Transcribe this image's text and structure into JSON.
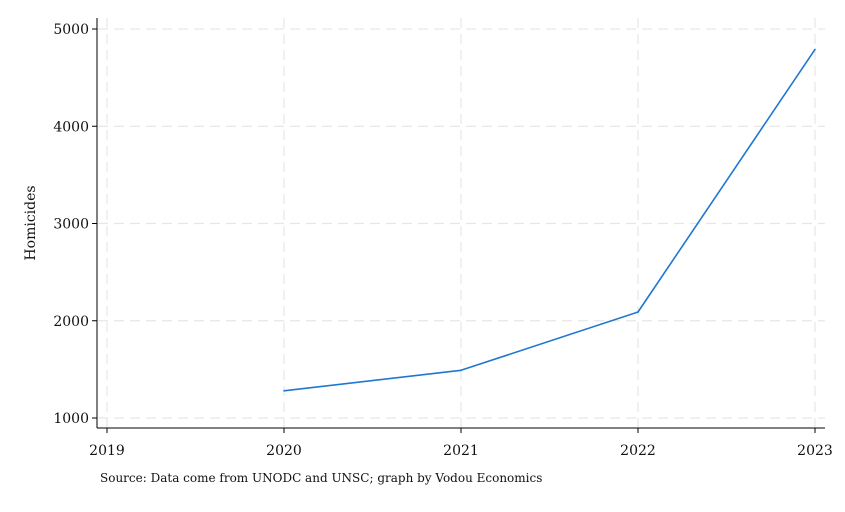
{
  "chart_data": {
    "type": "line",
    "title": "",
    "xlabel": "",
    "ylabel": "Homicides",
    "x": [
      2020,
      2021,
      2022,
      2023
    ],
    "series": [
      {
        "values": [
          1280,
          1490,
          2090,
          4790
        ],
        "color": "#1f77d2"
      }
    ],
    "xticks": [
      "2019",
      "2020",
      "2021",
      "2022",
      "2023"
    ],
    "yticks": [
      "1000",
      "2000",
      "3000",
      "4000",
      "5000"
    ],
    "xlim": [
      2019,
      2023
    ],
    "ylim": [
      1000,
      5000
    ],
    "grid": true,
    "legend": "none"
  },
  "note": "Source: Data come from UNODC and UNSC; graph by Vodou Economics"
}
